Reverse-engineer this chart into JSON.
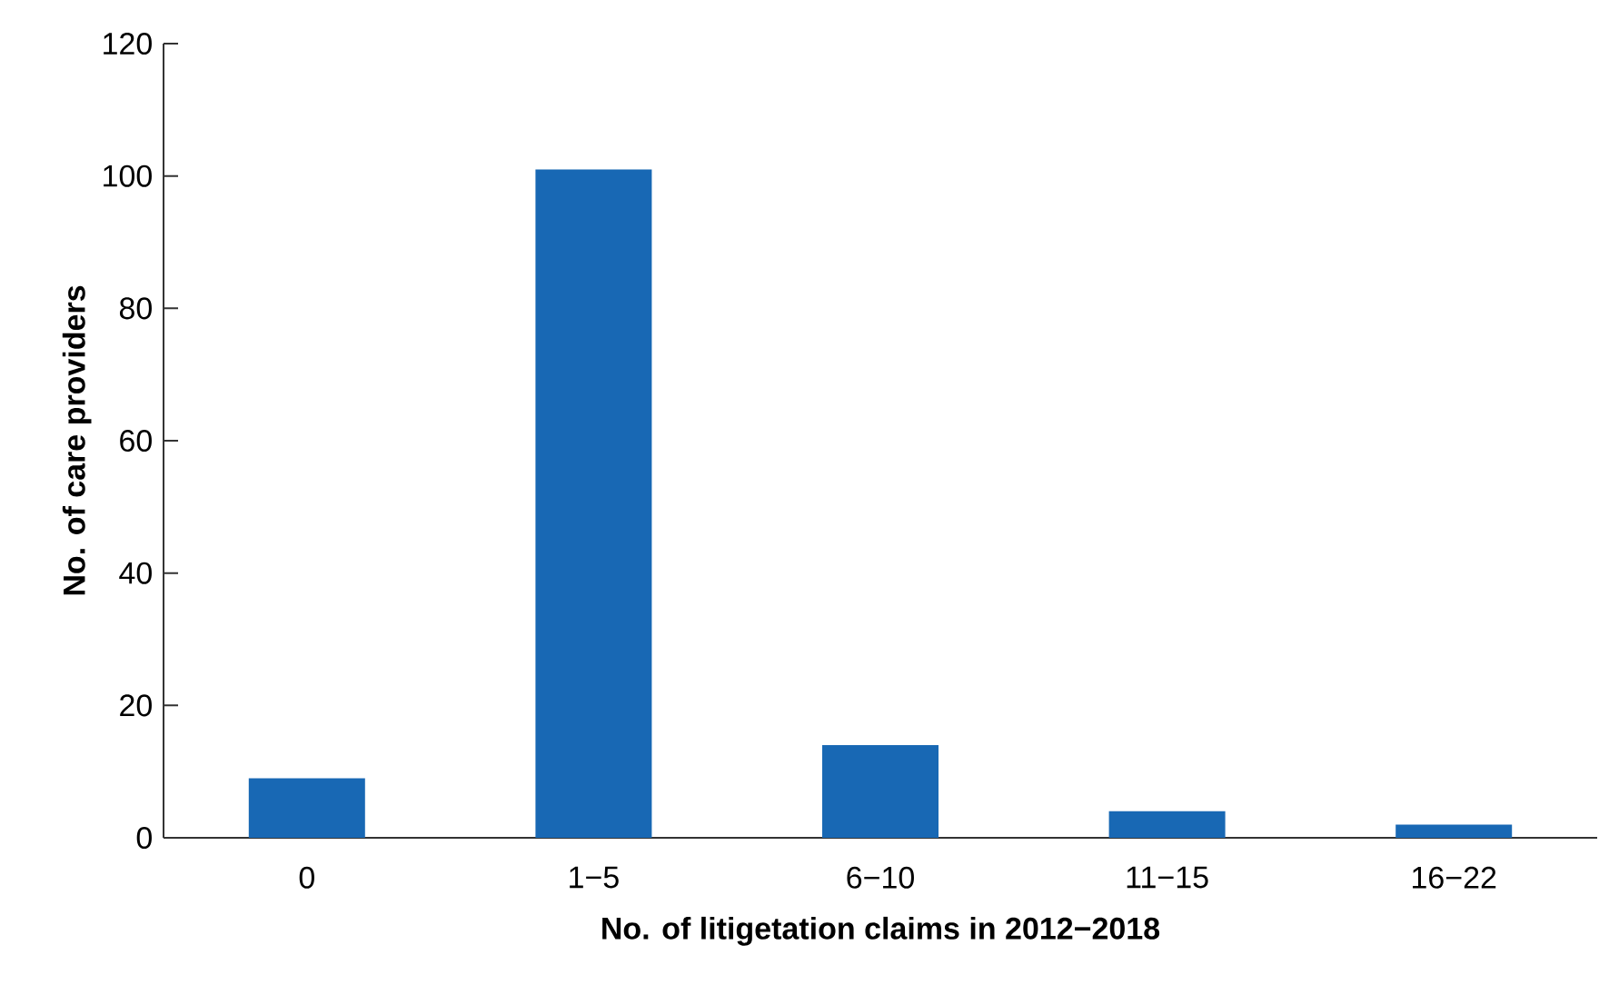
{
  "chart_data": {
    "type": "bar",
    "xlabel": "No. of litigetation claims in 2012−2018",
    "ylabel": "No. of care providers",
    "categories": [
      "0",
      "1−5",
      "6−10",
      "11−15",
      "16−22"
    ],
    "values": [
      9,
      101,
      14,
      4,
      2
    ],
    "color": "#1868b4",
    "ylim": [
      0,
      120
    ],
    "yticks": [
      0,
      20,
      40,
      60,
      80,
      100,
      120
    ]
  }
}
